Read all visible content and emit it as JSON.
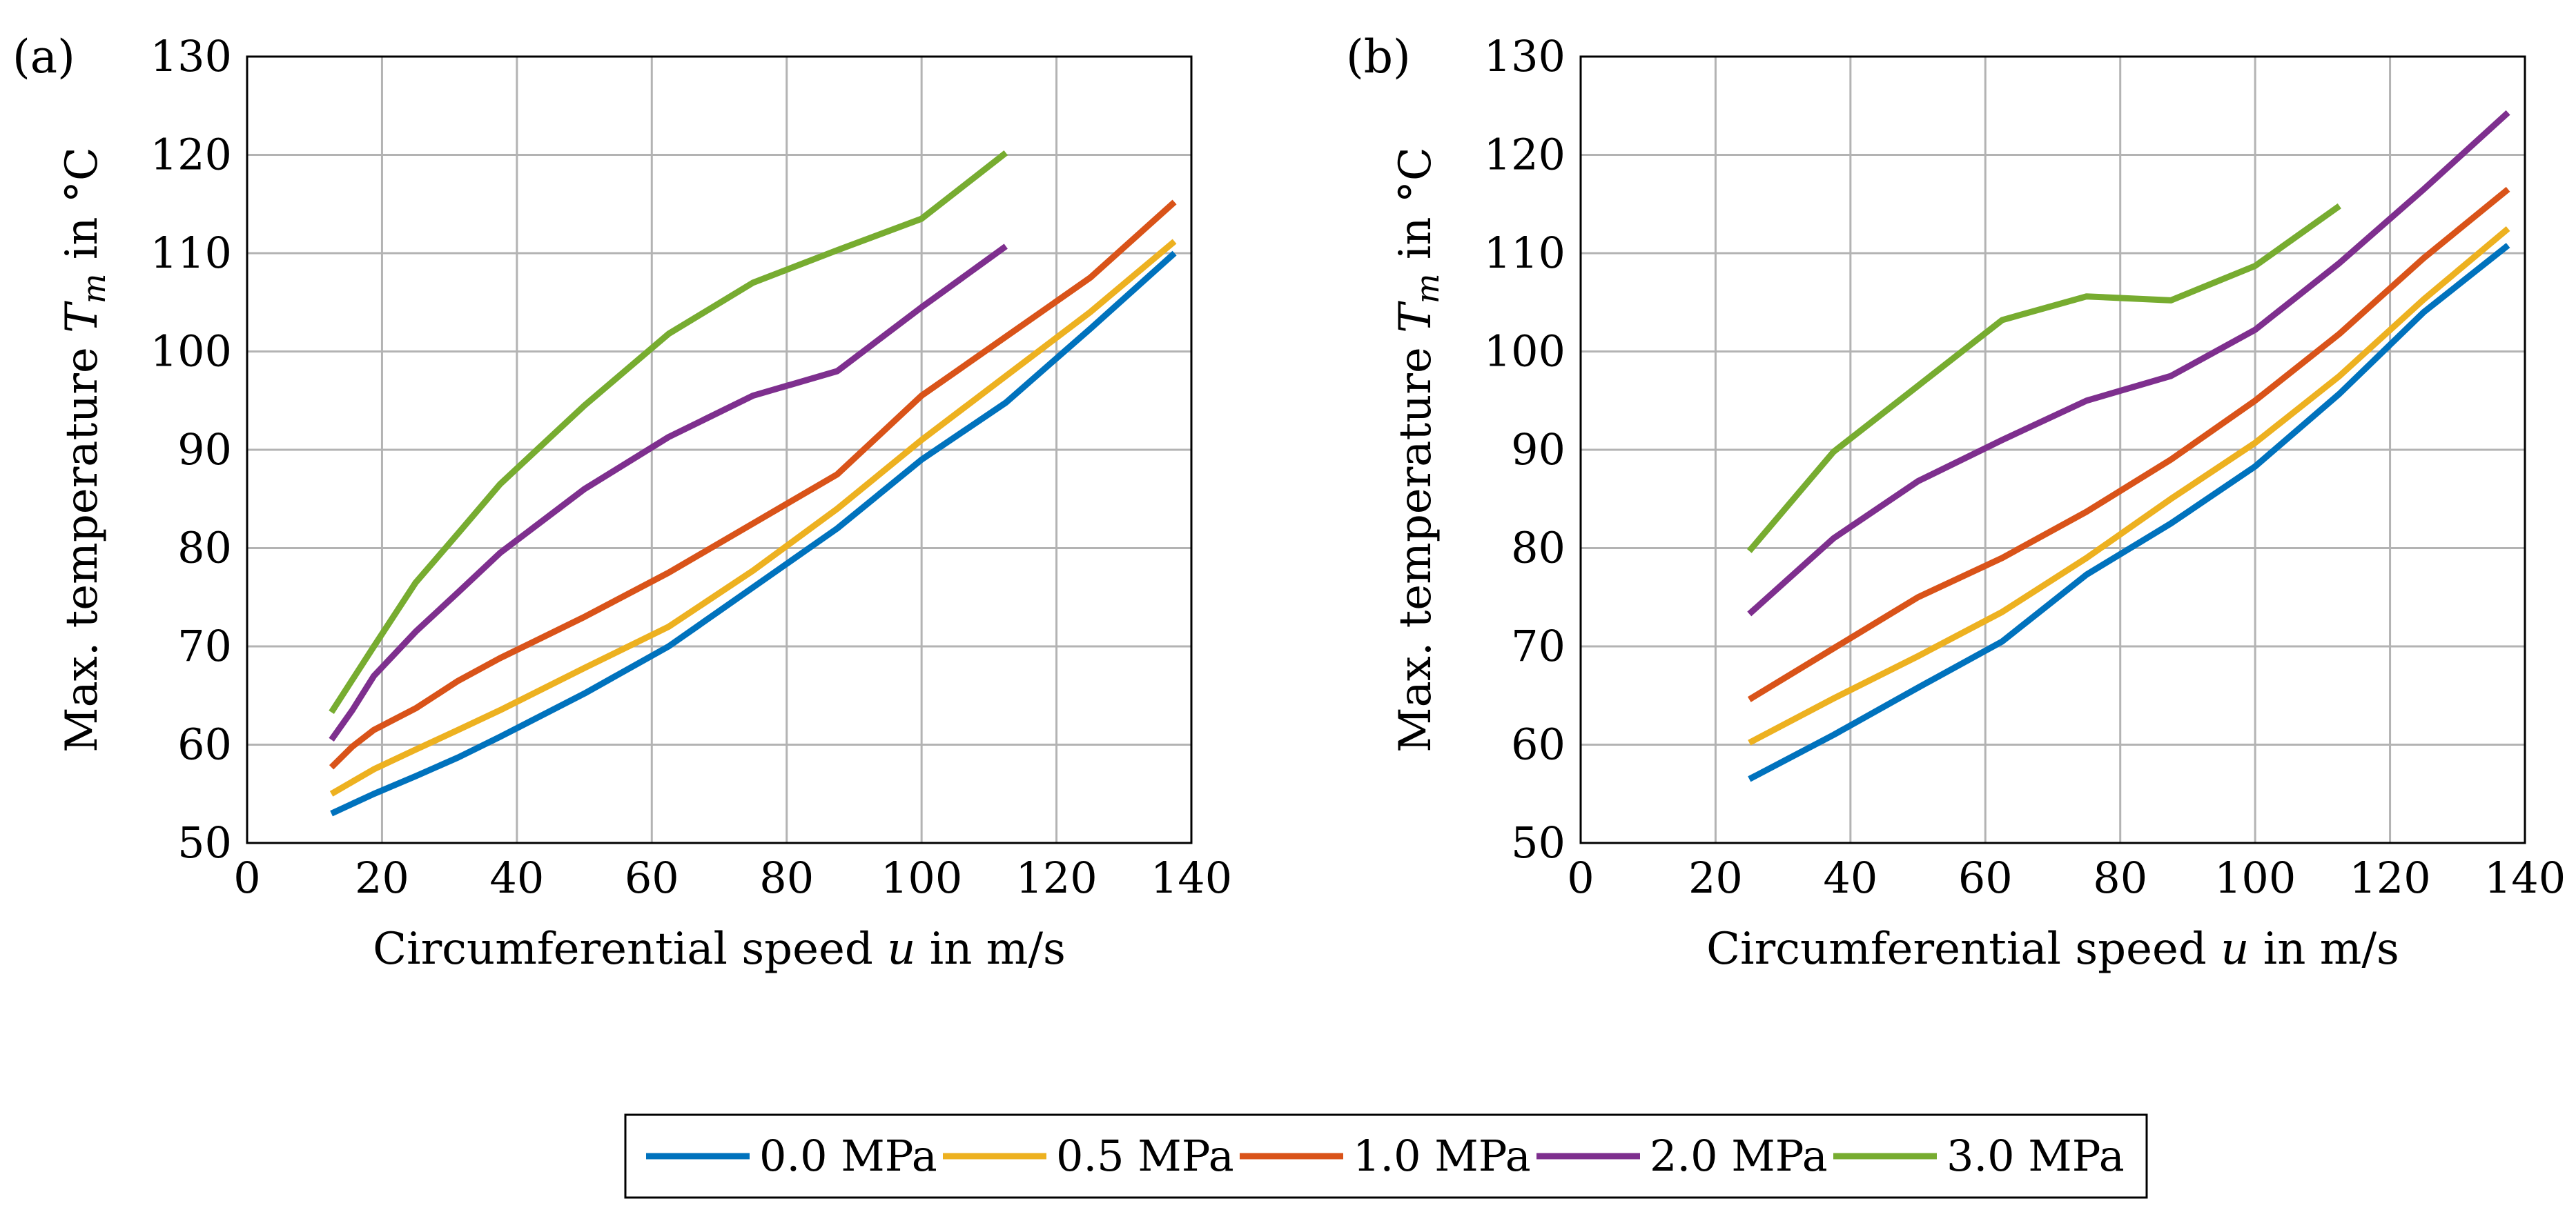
{
  "legend": {
    "entries": [
      {
        "label": "0.0 MPa",
        "color": "#0072BD"
      },
      {
        "label": "0.5 MPa",
        "color": "#EDB120"
      },
      {
        "label": "1.0 MPa",
        "color": "#D95319"
      },
      {
        "label": "2.0 MPa",
        "color": "#7E2F8E"
      },
      {
        "label": "3.0 MPa",
        "color": "#77AC30"
      }
    ]
  },
  "chart_data": [
    {
      "panel_label": "(a)",
      "type": "line",
      "xlabel": "Circumferential speed u in m/s",
      "ylabel": "Max. temperature T_m in °C",
      "xlim": [
        0,
        140
      ],
      "ylim": [
        50,
        130
      ],
      "xticks": [
        0,
        20,
        40,
        60,
        80,
        100,
        120,
        140
      ],
      "yticks": [
        50,
        60,
        70,
        80,
        90,
        100,
        110,
        120,
        130
      ],
      "grid": true,
      "series": [
        {
          "name": "0.0 MPa",
          "color": "#0072BD",
          "x": [
            12.5,
            18.8,
            25,
            31.3,
            37.5,
            50,
            62.5,
            75,
            87.5,
            100,
            112.5,
            125,
            137.5
          ],
          "y": [
            53,
            55,
            56.8,
            58.7,
            60.8,
            65.2,
            70,
            76,
            82,
            89,
            94.8,
            102.3,
            110
          ]
        },
        {
          "name": "0.5 MPa",
          "color": "#EDB120",
          "x": [
            12.5,
            18.8,
            25,
            31.3,
            37.5,
            50,
            62.5,
            75,
            87.5,
            100,
            112.5,
            125,
            137.5
          ],
          "y": [
            55,
            57.5,
            59.5,
            61.5,
            63.5,
            67.8,
            72,
            77.7,
            84,
            91,
            97.5,
            104,
            111.2
          ]
        },
        {
          "name": "1.0 MPa",
          "color": "#D95319",
          "x": [
            12.5,
            15.6,
            18.8,
            25,
            31.3,
            37.5,
            50,
            62.5,
            75,
            87.5,
            100,
            112.5,
            125,
            137.5
          ],
          "y": [
            57.7,
            59.8,
            61.5,
            63.7,
            66.5,
            68.8,
            73,
            77.5,
            82.5,
            87.5,
            95.5,
            101.5,
            107.5,
            115.2
          ]
        },
        {
          "name": "2.0 MPa",
          "color": "#7E2F8E",
          "x": [
            12.5,
            15.6,
            18.8,
            25,
            31.3,
            37.5,
            50,
            62.5,
            75,
            87.5,
            100,
            112.5
          ],
          "y": [
            60.5,
            63.5,
            67,
            71.5,
            75.5,
            79.5,
            86,
            91.3,
            95.5,
            98,
            104.5,
            110.7
          ]
        },
        {
          "name": "3.0 MPa",
          "color": "#77AC30",
          "x": [
            12.5,
            18.8,
            25,
            31.3,
            37.5,
            50,
            62.5,
            75,
            87.5,
            100,
            112.5
          ],
          "y": [
            63.3,
            70,
            76.5,
            81.5,
            86.5,
            94.5,
            101.8,
            107,
            110.3,
            113.5,
            120.2
          ]
        }
      ]
    },
    {
      "panel_label": "(b)",
      "type": "line",
      "xlabel": "Circumferential speed u in m/s",
      "ylabel": "Max. temperature T_m in °C",
      "xlim": [
        0,
        140
      ],
      "ylim": [
        50,
        130
      ],
      "xticks": [
        0,
        20,
        40,
        60,
        80,
        100,
        120,
        140
      ],
      "yticks": [
        50,
        60,
        70,
        80,
        90,
        100,
        110,
        120,
        130
      ],
      "grid": true,
      "series": [
        {
          "name": "0.0 MPa",
          "color": "#0072BD",
          "x": [
            25,
            37.5,
            50,
            62.5,
            75,
            87.5,
            100,
            112.5,
            125,
            137.5
          ],
          "y": [
            56.5,
            61,
            65.8,
            70.5,
            77.3,
            82.5,
            88.3,
            95.7,
            104,
            110.8
          ]
        },
        {
          "name": "0.5 MPa",
          "color": "#EDB120",
          "x": [
            25,
            37.5,
            50,
            62.5,
            75,
            87.5,
            100,
            112.5,
            125,
            137.5
          ],
          "y": [
            60.2,
            64.7,
            69,
            73.5,
            79,
            85,
            90.7,
            97.5,
            105.3,
            112.5
          ]
        },
        {
          "name": "1.0 MPa",
          "color": "#D95319",
          "x": [
            25,
            37.5,
            50,
            62.5,
            75,
            87.5,
            100,
            112.5,
            125,
            137.5
          ],
          "y": [
            64.6,
            69.8,
            75,
            79,
            83.7,
            89,
            95,
            101.8,
            109.5,
            116.5
          ]
        },
        {
          "name": "2.0 MPa",
          "color": "#7E2F8E",
          "x": [
            25,
            37.5,
            50,
            62.5,
            75,
            87.5,
            100,
            112.5,
            125,
            137.5
          ],
          "y": [
            73.3,
            81,
            86.8,
            91,
            95,
            97.5,
            102.2,
            109,
            116.5,
            124.3
          ]
        },
        {
          "name": "3.0 MPa",
          "color": "#77AC30",
          "x": [
            25,
            37.5,
            50,
            62.5,
            75,
            87.5,
            100,
            112.5
          ],
          "y": [
            79.7,
            89.8,
            96.5,
            103.2,
            105.6,
            105.2,
            108.7,
            114.8
          ]
        }
      ]
    }
  ]
}
